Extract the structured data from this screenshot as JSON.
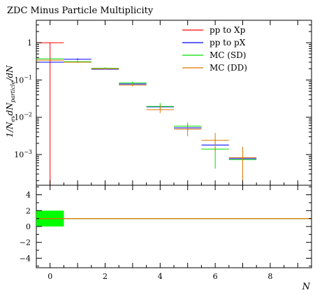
{
  "chart_data": {
    "type": "scatter",
    "title": "ZDC Minus Particle Multiplicity",
    "xlabel": "N",
    "ylabel_main": "1/N",
    "ylabel_sub": "ev",
    "ylabel_rest": "dN",
    "ylabel_sub2": "particle",
    "ylabel_tail": "/dN",
    "x_range": [
      -0.5,
      9.5
    ],
    "y_range_log": [
      0.00015,
      4
    ],
    "y_scale": "log",
    "ratio_range": [
      -5.2,
      5.2
    ],
    "x_ticks": [
      "0",
      "2",
      "4",
      "6",
      "8"
    ],
    "x_tick_values": [
      0,
      2,
      4,
      6,
      8
    ],
    "y_ticks": [
      {
        "value": 1,
        "base": "1",
        "exp": ""
      },
      {
        "value": 0.1,
        "base": "10",
        "exp": "−1"
      },
      {
        "value": 0.01,
        "base": "10",
        "exp": "−2"
      },
      {
        "value": 0.001,
        "base": "10",
        "exp": "−3"
      }
    ],
    "ratio_ticks": [
      "4",
      "2",
      "0",
      "−2",
      "−4"
    ],
    "ratio_tick_values": [
      4,
      2,
      0,
      -2,
      -4
    ],
    "legend_position": "top-right",
    "series": [
      {
        "name": "pp to Xp",
        "color": "#ff0000",
        "points": [
          {
            "x": 0,
            "y": 1.0,
            "lo": 0.0001,
            "hi": 1.0
          }
        ]
      },
      {
        "name": "pp to pX",
        "color": "#0000ff",
        "points": [
          {
            "x": 0,
            "y": 0.3
          },
          {
            "x": 1,
            "y": 0.36,
            "lo": 0.34,
            "hi": 0.38
          },
          {
            "x": 2,
            "y": 0.195
          },
          {
            "x": 3,
            "y": 0.078
          },
          {
            "x": 4,
            "y": 0.019
          },
          {
            "x": 5,
            "y": 0.0052
          },
          {
            "x": 6,
            "y": 0.0018
          },
          {
            "x": 7,
            "y": 0.00078
          }
        ]
      },
      {
        "name": "MC (SD)",
        "color": "#00dd00",
        "points": [
          {
            "x": 0,
            "y": 0.37
          },
          {
            "x": 1,
            "y": 0.31,
            "lo": 0.3,
            "hi": 0.33
          },
          {
            "x": 2,
            "y": 0.205,
            "lo": 0.19,
            "hi": 0.22
          },
          {
            "x": 3,
            "y": 0.083,
            "lo": 0.075,
            "hi": 0.09
          },
          {
            "x": 4,
            "y": 0.0195,
            "lo": 0.0165,
            "hi": 0.024
          },
          {
            "x": 5,
            "y": 0.0058,
            "lo": 0.0045,
            "hi": 0.0072
          },
          {
            "x": 6,
            "y": 0.0014,
            "lo": 0.00042,
            "hi": 0.0026
          },
          {
            "x": 7,
            "y": 0.00073,
            "lo": 0.00068,
            "hi": 0.00078
          }
        ]
      },
      {
        "name": "MC (DD)",
        "color": "#dd7700",
        "points": [
          {
            "x": 0,
            "y": 0.34
          },
          {
            "x": 1,
            "y": 0.3,
            "lo": 0.29,
            "hi": 0.31
          },
          {
            "x": 2,
            "y": 0.2,
            "lo": 0.19,
            "hi": 0.21
          },
          {
            "x": 3,
            "y": 0.073,
            "lo": 0.068,
            "hi": 0.079
          },
          {
            "x": 4,
            "y": 0.016,
            "lo": 0.013,
            "hi": 0.021
          },
          {
            "x": 5,
            "y": 0.0048,
            "lo": 0.0031,
            "hi": 0.0063
          },
          {
            "x": 6,
            "y": 0.0024,
            "lo": 0.0012,
            "hi": 0.0038
          },
          {
            "x": 7,
            "y": 0.00082,
            "lo": 0.00012,
            "hi": 0.0016
          }
        ]
      }
    ],
    "ratio_band": {
      "x0": -0.5,
      "x1": 0.5,
      "lo": 0,
      "hi": 2,
      "color": "#00ff00"
    },
    "ratio_lines": [
      {
        "color": "#00aa00",
        "y": 1
      },
      {
        "color": "#dd7700",
        "y": 1
      }
    ]
  }
}
